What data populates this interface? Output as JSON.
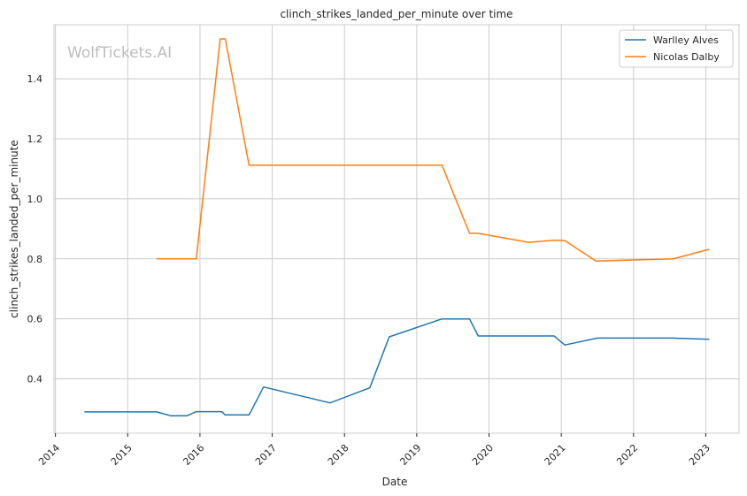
{
  "chart_data": {
    "type": "line",
    "title": "clinch_strikes_landed_per_minute over time",
    "xlabel": "Date",
    "ylabel": "clinch_strikes_landed_per_minute",
    "watermark": "WolfTickets.AI",
    "x_ticks": [
      "2014",
      "2015",
      "2016",
      "2017",
      "2018",
      "2019",
      "2020",
      "2021",
      "2022",
      "2023"
    ],
    "y_ticks": [
      "0.4",
      "0.6",
      "0.8",
      "1.0",
      "1.2",
      "1.4"
    ],
    "xlim": [
      2013.98,
      2023.46
    ],
    "ylim": [
      0.219,
      1.58
    ],
    "grid": true,
    "legend_position": "top-right",
    "series": [
      {
        "name": "Warlley Alves",
        "color": "#1f77b4",
        "x": [
          2014.4,
          2015.4,
          2015.6,
          2015.82,
          2015.95,
          2016.3,
          2016.35,
          2016.68,
          2016.88,
          2017.8,
          2018.35,
          2018.62,
          2019.35,
          2019.73,
          2019.85,
          2020.9,
          2021.05,
          2021.5,
          2022.55,
          2023.05
        ],
        "y": [
          0.29,
          0.29,
          0.277,
          0.277,
          0.291,
          0.291,
          0.28,
          0.28,
          0.373,
          0.32,
          0.37,
          0.54,
          0.6,
          0.6,
          0.543,
          0.543,
          0.513,
          0.536,
          0.536,
          0.532
        ]
      },
      {
        "name": "Nicolas Dalby",
        "color": "#ff7f0e",
        "x": [
          2015.4,
          2015.95,
          2016.28,
          2016.35,
          2016.68,
          2019.35,
          2019.73,
          2019.85,
          2020.55,
          2020.9,
          2021.05,
          2021.48,
          2022.55,
          2023.05
        ],
        "y": [
          0.8,
          0.8,
          1.533,
          1.533,
          1.112,
          1.112,
          0.885,
          0.885,
          0.855,
          0.862,
          0.861,
          0.793,
          0.8,
          0.832
        ]
      }
    ]
  }
}
